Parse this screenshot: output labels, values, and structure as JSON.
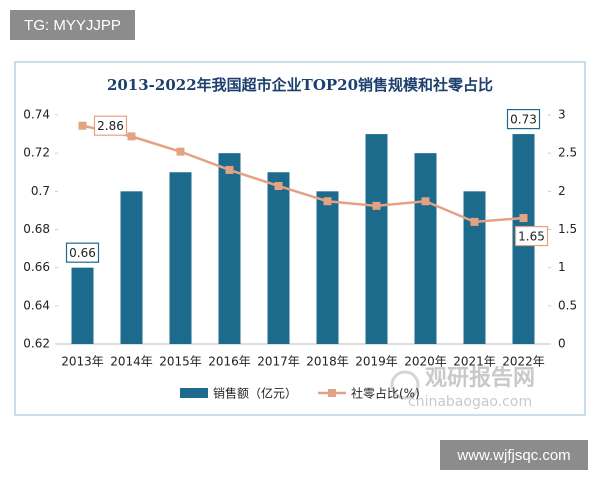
{
  "header_tag": "TG: MYYJJPP",
  "footer_tag": "www.wjfjsqc.com",
  "watermark": {
    "name": "观研报告网",
    "url": "chinabaogao.com"
  },
  "chart_data": {
    "type": "combo",
    "title": "2013-2022年我国超市企业TOP20销售规模和社零占比",
    "categories": [
      "2013年",
      "2014年",
      "2015年",
      "2016年",
      "2017年",
      "2018年",
      "2019年",
      "2020年",
      "2021年",
      "2022年"
    ],
    "series": [
      {
        "name": "销售额（亿元）",
        "type": "bar",
        "color": "#1c6a8c",
        "values": [
          0.66,
          0.7,
          0.71,
          0.72,
          0.71,
          0.7,
          0.73,
          0.72,
          0.7,
          0.73
        ],
        "value_labels": [
          "0.66",
          null,
          null,
          null,
          null,
          null,
          null,
          null,
          null,
          "0.73"
        ]
      },
      {
        "name": "社零占比(%)",
        "type": "line",
        "axis": "y2",
        "color": "#e4a283",
        "values": [
          2.86,
          2.72,
          2.52,
          2.28,
          2.07,
          1.87,
          1.81,
          1.87,
          1.6,
          1.65
        ],
        "value_labels": [
          "2.86",
          null,
          null,
          null,
          null,
          null,
          null,
          null,
          null,
          "1.65"
        ]
      }
    ],
    "ylim": [
      0.62,
      0.74
    ],
    "yticks": [
      0.62,
      0.64,
      0.66,
      0.68,
      0.7,
      0.72,
      0.74
    ],
    "y2lim": [
      0,
      3
    ],
    "y2ticks": [
      0,
      0.5,
      1,
      1.5,
      2,
      2.5,
      3
    ],
    "grid": false,
    "legend": "bottom"
  }
}
